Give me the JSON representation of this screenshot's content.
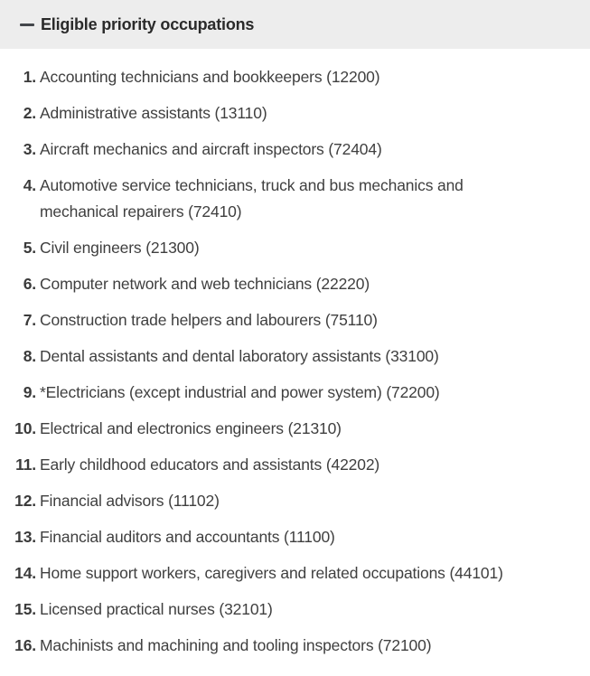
{
  "accordion": {
    "title": "Eligible priority occupations",
    "state": "expanded",
    "toggle_icon": "minus-icon"
  },
  "colors": {
    "header_bg": "#ededed",
    "title_text": "#2a2a2a",
    "body_text": "#3f3f3f",
    "icon": "#43464b",
    "page_bg": "#ffffff"
  },
  "list": {
    "items": [
      {
        "number": "1.",
        "text": "Accounting technicians and bookkeepers (12200)"
      },
      {
        "number": "2.",
        "text": "Administrative assistants (13110)"
      },
      {
        "number": "3.",
        "text": "Aircraft mechanics and aircraft inspectors (72404)"
      },
      {
        "number": "4.",
        "text": "Automotive service technicians, truck and bus mechanics and mechanical repairers (72410)"
      },
      {
        "number": "5.",
        "text": "Civil engineers (21300)"
      },
      {
        "number": "6.",
        "text": "Computer network and web technicians (22220)"
      },
      {
        "number": "7.",
        "text": "Construction trade helpers and labourers (75110)"
      },
      {
        "number": "8.",
        "text": "Dental assistants and dental laboratory assistants (33100)"
      },
      {
        "number": "9.",
        "text": "*Electricians (except industrial and power system) (72200)"
      },
      {
        "number": "10.",
        "text": "Electrical and electronics engineers (21310)"
      },
      {
        "number": "11.",
        "text": "Early childhood educators and assistants (42202)"
      },
      {
        "number": "12.",
        "text": "Financial advisors (11102)"
      },
      {
        "number": "13.",
        "text": "Financial auditors and accountants (11100)"
      },
      {
        "number": "14.",
        "text": "Home support workers, caregivers and related occupations (44101)"
      },
      {
        "number": "15.",
        "text": "Licensed practical nurses (32101)"
      },
      {
        "number": "16.",
        "text": "Machinists and machining and tooling inspectors (72100)"
      }
    ]
  }
}
